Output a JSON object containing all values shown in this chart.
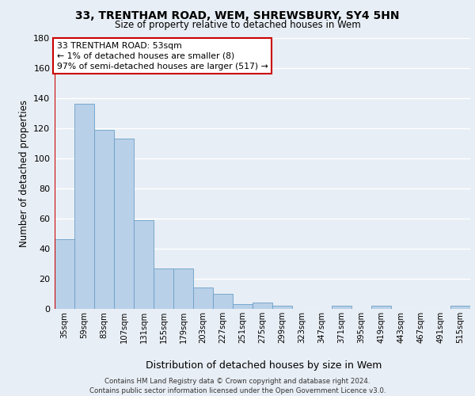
{
  "title1": "33, TRENTHAM ROAD, WEM, SHREWSBURY, SY4 5HN",
  "title2": "Size of property relative to detached houses in Wem",
  "xlabel": "Distribution of detached houses by size in Wem",
  "ylabel": "Number of detached properties",
  "categories": [
    "35sqm",
    "59sqm",
    "83sqm",
    "107sqm",
    "131sqm",
    "155sqm",
    "179sqm",
    "203sqm",
    "227sqm",
    "251sqm",
    "275sqm",
    "299sqm",
    "323sqm",
    "347sqm",
    "371sqm",
    "395sqm",
    "419sqm",
    "443sqm",
    "467sqm",
    "491sqm",
    "515sqm"
  ],
  "values": [
    46,
    136,
    119,
    113,
    59,
    27,
    27,
    14,
    10,
    3,
    4,
    2,
    0,
    0,
    2,
    0,
    2,
    0,
    0,
    0,
    2
  ],
  "bar_color": "#b8d0e8",
  "bar_edge_color": "#6a9fc8",
  "marker_color": "#cc0000",
  "annotation_text": "33 TRENTHAM ROAD: 53sqm\n← 1% of detached houses are smaller (8)\n97% of semi-detached houses are larger (517) →",
  "annotation_box_color": "#ffffff",
  "annotation_box_edge_color": "#cc0000",
  "ylim": [
    0,
    180
  ],
  "yticks": [
    0,
    20,
    40,
    60,
    80,
    100,
    120,
    140,
    160,
    180
  ],
  "footer": "Contains HM Land Registry data © Crown copyright and database right 2024.\nContains public sector information licensed under the Open Government Licence v3.0.",
  "background_color": "#e8eef5",
  "plot_bg_color": "#e8eef5",
  "grid_color": "#ffffff"
}
